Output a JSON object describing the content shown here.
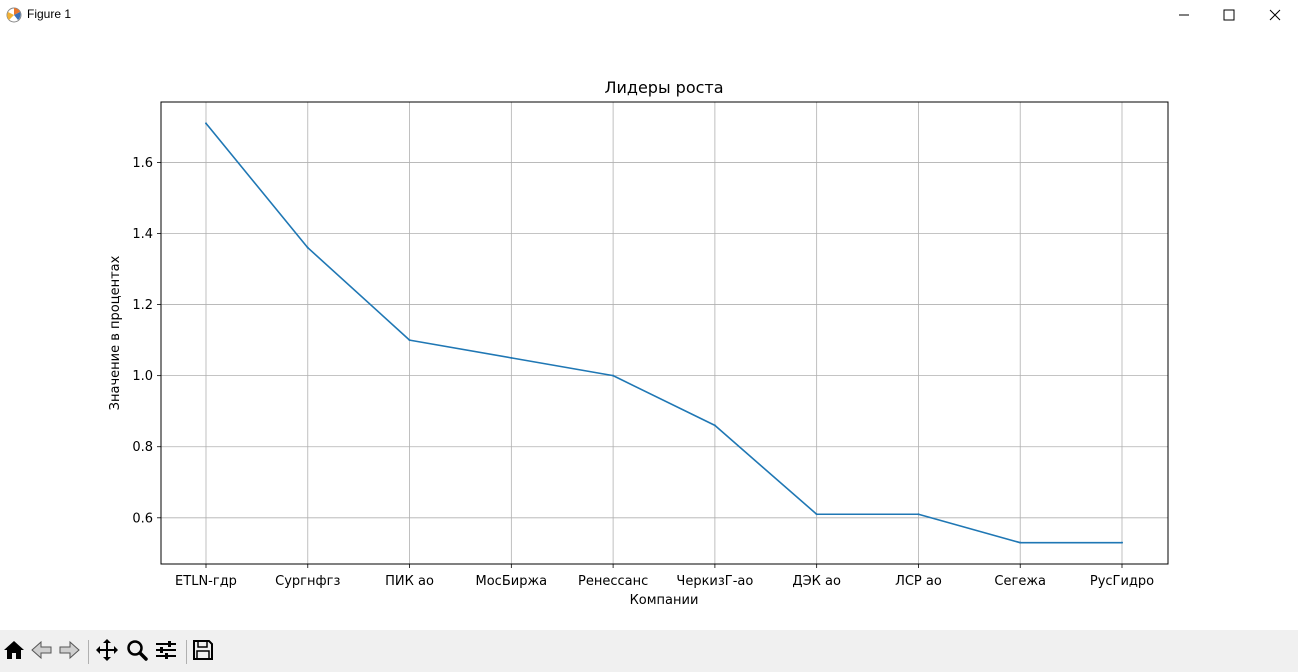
{
  "window": {
    "title": "Figure 1",
    "icon": "matplotlib-icon",
    "controls": [
      "minimize-icon",
      "maximize-icon",
      "close-icon"
    ]
  },
  "toolbar": {
    "buttons": [
      "home-icon",
      "back-icon",
      "forward-icon",
      "pan-icon",
      "zoom-icon",
      "configure-subplots-icon",
      "save-icon"
    ]
  },
  "chart_data": {
    "type": "line",
    "title": "Лидеры роста",
    "xlabel": "Компании",
    "ylabel": "Значение в процентах",
    "categories": [
      "ETLN-гдр",
      "Сургнфгз",
      "ПИК ао",
      "МосБиржа",
      "Ренессанс",
      "ЧеркизГ-ао",
      "ДЭК ао",
      "ЛСР ао",
      "Сегежа",
      "РусГидро"
    ],
    "values": [
      1.71,
      1.36,
      1.1,
      1.05,
      1.0,
      0.86,
      0.61,
      0.61,
      0.53,
      0.53
    ],
    "yticks": [
      "0.6",
      "0.8",
      "1.0",
      "1.2",
      "1.4",
      "1.6"
    ],
    "ylim": [
      0.47,
      1.77
    ],
    "grid": true,
    "color": "#1f77b4"
  }
}
